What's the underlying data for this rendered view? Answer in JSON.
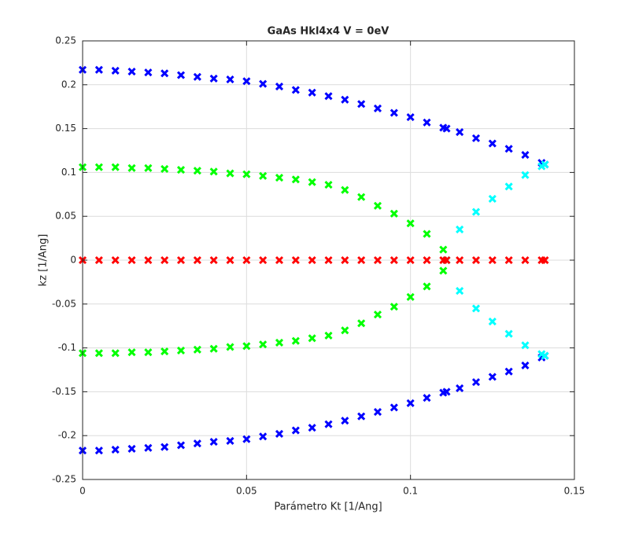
{
  "chart_data": {
    "type": "scatter",
    "title": "GaAs Hkl4x4 V = 0eV",
    "x_label": "Parámetro Kt [1/Ang]",
    "y_label": "kz [1/Ang]",
    "xlim": [
      0,
      0.15
    ],
    "xticks": [
      0,
      0.05,
      0.1,
      0.15
    ],
    "ylim": [
      -0.25,
      0.25
    ],
    "yticks": [
      -0.25,
      -0.2,
      -0.15,
      -0.1,
      -0.05,
      0,
      0.05,
      0.1,
      0.15,
      0.2,
      0.25
    ],
    "grid": true,
    "marker": "x",
    "x": [
      0,
      0.005,
      0.01,
      0.015,
      0.02,
      0.025,
      0.03,
      0.035,
      0.04,
      0.045,
      0.05,
      0.055,
      0.06,
      0.065,
      0.07,
      0.075,
      0.08,
      0.085,
      0.09,
      0.095,
      0.1,
      0.105,
      0.11,
      0.111,
      0.115,
      0.12,
      0.125,
      0.13,
      0.135,
      0.14,
      0.141
    ],
    "series": [
      {
        "color": "#0000ff",
        "values": [
          0.217,
          0.217,
          0.216,
          0.215,
          0.214,
          0.213,
          0.211,
          0.209,
          0.207,
          0.206,
          0.204,
          0.201,
          0.198,
          0.194,
          0.191,
          0.187,
          0.183,
          0.178,
          0.173,
          0.168,
          0.163,
          0.157,
          0.151,
          0.15,
          0.146,
          0.139,
          0.133,
          0.127,
          0.12,
          0.111,
          0.109
        ]
      },
      {
        "color": "#0000ff",
        "values": [
          -0.217,
          -0.217,
          -0.216,
          -0.215,
          -0.214,
          -0.213,
          -0.211,
          -0.209,
          -0.207,
          -0.206,
          -0.204,
          -0.201,
          -0.198,
          -0.194,
          -0.191,
          -0.187,
          -0.183,
          -0.178,
          -0.173,
          -0.168,
          -0.163,
          -0.157,
          -0.151,
          -0.15,
          -0.146,
          -0.139,
          -0.133,
          -0.127,
          -0.12,
          -0.111,
          -0.109
        ]
      },
      {
        "color": "#00ff00",
        "values": [
          0.106,
          0.106,
          0.106,
          0.105,
          0.105,
          0.104,
          0.103,
          0.102,
          0.101,
          0.099,
          0.098,
          0.096,
          0.094,
          0.092,
          0.089,
          0.086,
          0.08,
          0.072,
          0.062,
          0.053,
          0.042,
          0.03,
          0.012,
          0,
          null,
          null,
          null,
          null,
          null,
          null,
          null
        ]
      },
      {
        "color": "#00ff00",
        "values": [
          -0.106,
          -0.106,
          -0.106,
          -0.105,
          -0.105,
          -0.104,
          -0.103,
          -0.102,
          -0.101,
          -0.099,
          -0.098,
          -0.096,
          -0.094,
          -0.092,
          -0.089,
          -0.086,
          -0.08,
          -0.072,
          -0.062,
          -0.053,
          -0.042,
          -0.03,
          -0.012,
          0,
          null,
          null,
          null,
          null,
          null,
          null,
          null
        ]
      },
      {
        "color": "#00ffff",
        "values": [
          null,
          null,
          null,
          null,
          null,
          null,
          null,
          null,
          null,
          null,
          null,
          null,
          null,
          null,
          null,
          null,
          null,
          null,
          null,
          null,
          null,
          null,
          null,
          0,
          0.035,
          0.055,
          0.07,
          0.084,
          0.097,
          0.107,
          0.109
        ]
      },
      {
        "color": "#00ffff",
        "values": [
          null,
          null,
          null,
          null,
          null,
          null,
          null,
          null,
          null,
          null,
          null,
          null,
          null,
          null,
          null,
          null,
          null,
          null,
          null,
          null,
          null,
          null,
          null,
          0,
          -0.035,
          -0.055,
          -0.07,
          -0.084,
          -0.097,
          -0.107,
          -0.109
        ]
      },
      {
        "color": "#ff0000",
        "values": [
          0,
          0,
          0,
          0,
          0,
          0,
          0,
          0,
          0,
          0,
          0,
          0,
          0,
          0,
          0,
          0,
          0,
          0,
          0,
          0,
          0,
          0,
          0,
          0,
          0,
          0,
          0,
          0,
          0,
          0,
          0
        ]
      }
    ]
  }
}
